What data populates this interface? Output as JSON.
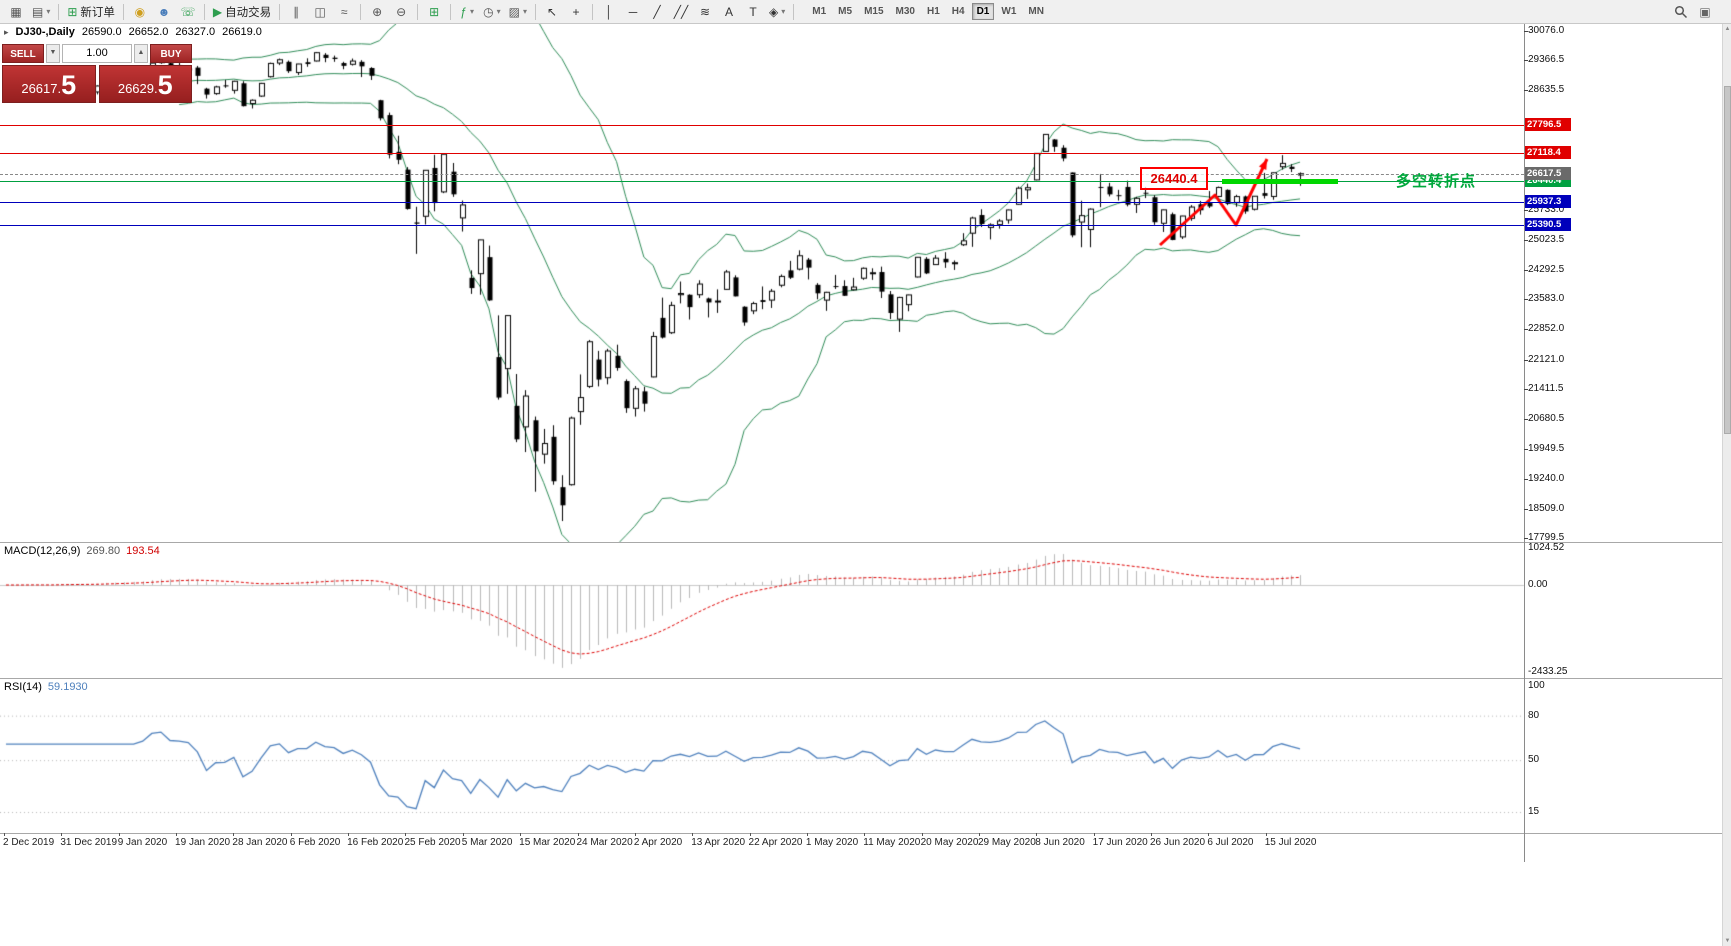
{
  "toolbar": {
    "groups": [
      {
        "items": [
          {
            "name": "new-chart",
            "glyph": "▦",
            "color": "#555"
          },
          {
            "name": "chart-profiles",
            "glyph": "▤",
            "color": "#555",
            "dropdown": true
          }
        ]
      },
      {
        "items": [
          {
            "name": "new-order",
            "glyph": "⊞",
            "color": "#2e9e4f",
            "label": "新订单"
          }
        ]
      },
      {
        "items": [
          {
            "name": "deposit",
            "glyph": "◉",
            "color": "#cf9f1f"
          },
          {
            "name": "accounts",
            "glyph": "☻",
            "color": "#4a7ebb"
          },
          {
            "name": "support",
            "glyph": "☏",
            "color": "#2e9e4f"
          }
        ]
      },
      {
        "items": [
          {
            "name": "auto-trading",
            "glyph": "▶",
            "color": "#2e9e4f",
            "label": "自动交易"
          }
        ]
      },
      {
        "items": [
          {
            "name": "bar-chart-mode",
            "glyph": "∥",
            "color": "#555"
          },
          {
            "name": "candlestick-mode",
            "glyph": "◫",
            "color": "#555"
          },
          {
            "name": "line-chart-mode",
            "glyph": "≈",
            "color": "#555"
          }
        ]
      },
      {
        "items": [
          {
            "name": "zoom-in",
            "glyph": "⊕",
            "color": "#555"
          },
          {
            "name": "zoom-out",
            "glyph": "⊖",
            "color": "#555"
          }
        ]
      },
      {
        "items": [
          {
            "name": "auto-arrange",
            "glyph": "⊞",
            "color": "#2e9e4f"
          }
        ]
      },
      {
        "items": [
          {
            "name": "indicators",
            "glyph": "ƒ",
            "color": "#2e9e4f",
            "dropdown": true
          },
          {
            "name": "periods",
            "glyph": "◷",
            "color": "#555",
            "dropdown": true
          },
          {
            "name": "templates",
            "glyph": "▨",
            "color": "#555",
            "dropdown": true
          }
        ]
      },
      {
        "items": [
          {
            "name": "cursor",
            "glyph": "↖",
            "color": "#333"
          },
          {
            "name": "crosshair",
            "glyph": "+",
            "color": "#333"
          }
        ]
      },
      {
        "items": [
          {
            "name": "vertical-line",
            "glyph": "│",
            "color": "#333"
          },
          {
            "name": "horizontal-line",
            "glyph": "─",
            "color": "#333"
          },
          {
            "name": "trendline",
            "glyph": "╱",
            "color": "#333"
          },
          {
            "name": "equidistant-channel",
            "glyph": "╱╱",
            "color": "#333"
          },
          {
            "name": "fibonacci",
            "glyph": "≋",
            "color": "#333"
          },
          {
            "name": "text",
            "glyph": "A",
            "color": "#333"
          },
          {
            "name": "text-label",
            "glyph": "T",
            "color": "#333"
          },
          {
            "name": "arrows",
            "glyph": "◈",
            "color": "#333",
            "dropdown": true
          }
        ]
      }
    ],
    "timeframes": [
      "M1",
      "M5",
      "M15",
      "M30",
      "H1",
      "H4",
      "D1",
      "W1",
      "MN"
    ],
    "active_timeframe": "D1"
  },
  "chart": {
    "symbol_line": {
      "symbol": "DJ30-,Daily",
      "open": "26590.0",
      "high": "26652.0",
      "low": "26327.0",
      "close": "26619.0"
    },
    "trade_panel": {
      "sell_label": "SELL",
      "buy_label": "BUY",
      "volume": "1.00",
      "bid_main": "26617.",
      "bid_big": "5",
      "ask_main": "26629.",
      "ask_big": "5"
    },
    "price_ticks": [
      {
        "v": 30076.0,
        "label": "30076.0"
      },
      {
        "v": 29366.5,
        "label": "29366.5"
      },
      {
        "v": 28635.5,
        "label": "28635.5"
      },
      {
        "v": 25733.0,
        "label": "25733.0"
      },
      {
        "v": 25023.5,
        "label": "25023.5"
      },
      {
        "v": 24292.5,
        "label": "24292.5"
      },
      {
        "v": 23583.0,
        "label": "23583.0"
      },
      {
        "v": 22852.0,
        "label": "22852.0"
      },
      {
        "v": 22121.0,
        "label": "22121.0"
      },
      {
        "v": 21411.5,
        "label": "21411.5"
      },
      {
        "v": 20680.5,
        "label": "20680.5"
      },
      {
        "v": 19949.5,
        "label": "19949.5"
      },
      {
        "v": 19240.0,
        "label": "19240.0"
      },
      {
        "v": 18509.0,
        "label": "18509.0"
      },
      {
        "v": 17799.5,
        "label": "17799.5"
      }
    ],
    "hlines": [
      {
        "v": 27796.5,
        "label": "27796.5",
        "color": "#e00000"
      },
      {
        "v": 27118.4,
        "label": "27118.4",
        "color": "#e00000"
      },
      {
        "v": 26440.4,
        "label": "26440.4",
        "color": "#00a040"
      },
      {
        "v": 25937.3,
        "label": "25937.3",
        "color": "#0000bb"
      },
      {
        "v": 25390.5,
        "label": "25390.5",
        "color": "#0000bb"
      }
    ],
    "bid_line": {
      "v": 26617.5,
      "label": "26617.5",
      "color": "#6a6a6a"
    },
    "dates": [
      "2 Dec 2019",
      "31 Dec 2019",
      "9 Jan 2020",
      "19 Jan 2020",
      "28 Jan 2020",
      "6 Feb 2020",
      "16 Feb 2020",
      "25 Feb 2020",
      "5 Mar 2020",
      "15 Mar 2020",
      "24 Mar 2020",
      "2 Apr 2020",
      "13 Apr 2020",
      "22 Apr 2020",
      "1 May 2020",
      "11 May 2020",
      "20 May 2020",
      "29 May 2020",
      "8 Jun 2020",
      "17 Jun 2020",
      "26 Jun 2020",
      "6 Jul 2020",
      "15 Jul 2020"
    ],
    "annotations": {
      "level_label": "26440.4",
      "pivot_label": "多空转折点",
      "zigzag": [
        [
          1160,
          221
        ],
        [
          1215,
          171
        ],
        [
          1236,
          201
        ],
        [
          1267,
          135
        ]
      ]
    }
  },
  "macd": {
    "name": "MACD(12,26,9)",
    "v1": "269.80",
    "v2": "193.54",
    "axis": [
      {
        "v": 1024.52,
        "label": "1024.52"
      },
      {
        "v": 0,
        "label": "0.00"
      },
      {
        "v": -2433.25,
        "label": "-2433.25"
      }
    ]
  },
  "rsi": {
    "name": "RSI(14)",
    "value": "59.1930",
    "axis": [
      {
        "v": 100,
        "label": "100"
      },
      {
        "v": 80,
        "label": "80"
      },
      {
        "v": 50,
        "label": "50"
      },
      {
        "v": 15,
        "label": "15"
      }
    ],
    "levels": [
      80,
      50,
      15
    ]
  },
  "colors": {
    "bull": "#ffffff",
    "bear": "#000000",
    "wick": "#000000",
    "bollinger": "#2e8b57",
    "macd_hist": "#b9b9b9",
    "macd_signal": "#dd0000",
    "macd_zero": "#c8c8c8",
    "rsi_line": "#4f81bd",
    "rsi_level": "#b6b6b6",
    "annotation_red": "#ff0000"
  },
  "chart_data": {
    "type": "candlestick",
    "symbol": "DJ30-",
    "timeframe": "Daily",
    "visible_range": [
      "22 Dec 2019",
      "17 Jul 2020"
    ],
    "y_range": [
      17799.5,
      30076.0
    ],
    "candles": [
      [
        28470,
        28560,
        28430,
        28551
      ],
      [
        28550,
        28580,
        28500,
        28515
      ],
      [
        28520,
        28625,
        28510,
        28621
      ],
      [
        28640,
        28700,
        28570,
        28645
      ],
      [
        28640,
        28660,
        28420,
        28462
      ],
      [
        28460,
        28550,
        28430,
        28538
      ],
      [
        28560,
        28880,
        28540,
        28869
      ],
      [
        28650,
        28720,
        28500,
        28635
      ],
      [
        28550,
        28710,
        28520,
        28703
      ],
      [
        28700,
        28730,
        28560,
        28583
      ],
      [
        28600,
        28760,
        28540,
        28745
      ],
      [
        28800,
        28960,
        28790,
        28957
      ],
      [
        28960,
        29010,
        28820,
        28824
      ],
      [
        28850,
        28910,
        28810,
        28907
      ],
      [
        28910,
        29010,
        28870,
        28939
      ],
      [
        28930,
        29060,
        28890,
        29030
      ],
      [
        29070,
        29300,
        29060,
        29297
      ],
      [
        29310,
        29375,
        29280,
        29348
      ],
      [
        29300,
        29340,
        29190,
        29196
      ],
      [
        29240,
        29320,
        29170,
        29186
      ],
      [
        29130,
        29230,
        28970,
        29160
      ],
      [
        29190,
        29230,
        28790,
        28990
      ],
      [
        28680,
        28700,
        28440,
        28536
      ],
      [
        28560,
        28750,
        28530,
        28723
      ],
      [
        28760,
        28890,
        28700,
        28734
      ],
      [
        28640,
        28870,
        28560,
        28859
      ],
      [
        28810,
        28860,
        28250,
        28256
      ],
      [
        28320,
        28420,
        28200,
        28400
      ],
      [
        28500,
        28820,
        28480,
        28808
      ],
      [
        28970,
        29310,
        28950,
        29291
      ],
      [
        29300,
        29409,
        29250,
        29380
      ],
      [
        29330,
        29360,
        29060,
        29103
      ],
      [
        29070,
        29280,
        29010,
        29277
      ],
      [
        29320,
        29415,
        29210,
        29276
      ],
      [
        29350,
        29568,
        29340,
        29551
      ],
      [
        29500,
        29540,
        29320,
        29423
      ],
      [
        29430,
        29480,
        29330,
        29398
      ],
      [
        29300,
        29330,
        29150,
        29232
      ],
      [
        29270,
        29409,
        29240,
        29348
      ],
      [
        29330,
        29370,
        28960,
        29220
      ],
      [
        29180,
        29200,
        28890,
        28992
      ],
      [
        28400,
        28410,
        27910,
        27961
      ],
      [
        28040,
        28100,
        26990,
        27081
      ],
      [
        27150,
        27540,
        26850,
        26958
      ],
      [
        26720,
        26780,
        25750,
        25766
      ],
      [
        25440,
        25820,
        24680,
        25409
      ],
      [
        25590,
        26710,
        25390,
        26703
      ],
      [
        26760,
        27080,
        25710,
        25917
      ],
      [
        26180,
        27100,
        26150,
        27090
      ],
      [
        26670,
        26880,
        26060,
        26121
      ],
      [
        25550,
        25970,
        25220,
        25864
      ],
      [
        24100,
        24280,
        23710,
        23851
      ],
      [
        24200,
        25020,
        23690,
        25018
      ],
      [
        24600,
        24880,
        23540,
        23553
      ],
      [
        22180,
        23190,
        21150,
        21200
      ],
      [
        21900,
        23190,
        21290,
        23185
      ],
      [
        21000,
        21770,
        20120,
        20188
      ],
      [
        20490,
        21380,
        19880,
        21237
      ],
      [
        20650,
        20740,
        18920,
        19898
      ],
      [
        19830,
        20440,
        19600,
        20087
      ],
      [
        20250,
        20530,
        19090,
        19173
      ],
      [
        19030,
        19320,
        18210,
        18591
      ],
      [
        19090,
        20740,
        19070,
        20704
      ],
      [
        20860,
        21760,
        20540,
        21200
      ],
      [
        21470,
        22595,
        21430,
        22552
      ],
      [
        22120,
        22330,
        21470,
        21636
      ],
      [
        21680,
        22380,
        21520,
        22327
      ],
      [
        22210,
        22480,
        21850,
        21917
      ],
      [
        21600,
        21640,
        20830,
        20943
      ],
      [
        20940,
        21480,
        20740,
        21413
      ],
      [
        21350,
        21460,
        20860,
        21052
      ],
      [
        21700,
        22790,
        21690,
        22679
      ],
      [
        23130,
        23620,
        22630,
        22653
      ],
      [
        22770,
        23520,
        22740,
        23433
      ],
      [
        23690,
        24010,
        23480,
        23719
      ],
      [
        23690,
        23700,
        23090,
        23390
      ],
      [
        23690,
        24040,
        23610,
        23949
      ],
      [
        23600,
        23620,
        23140,
        23504
      ],
      [
        23520,
        23820,
        23250,
        23537
      ],
      [
        23820,
        24290,
        23810,
        24242
      ],
      [
        24110,
        24160,
        23650,
        23650
      ],
      [
        23400,
        23410,
        22940,
        23018
      ],
      [
        23300,
        23520,
        23220,
        23476
      ],
      [
        23560,
        23890,
        23340,
        23515
      ],
      [
        23560,
        23830,
        23370,
        23775
      ],
      [
        23920,
        24180,
        23870,
        24134
      ],
      [
        24280,
        24510,
        24070,
        24102
      ],
      [
        24310,
        24765,
        24280,
        24634
      ],
      [
        24540,
        24580,
        24060,
        24346
      ],
      [
        23930,
        23970,
        23580,
        23724
      ],
      [
        23560,
        23760,
        23300,
        23749
      ],
      [
        23900,
        24170,
        23830,
        23883
      ],
      [
        23900,
        24040,
        23660,
        23665
      ],
      [
        23810,
        24100,
        23790,
        23876
      ],
      [
        24090,
        24350,
        24050,
        24331
      ],
      [
        24210,
        24330,
        24050,
        24222
      ],
      [
        24240,
        24370,
        23610,
        23765
      ],
      [
        23700,
        23780,
        23100,
        23248
      ],
      [
        23100,
        23640,
        22790,
        23625
      ],
      [
        23450,
        23690,
        23290,
        23685
      ],
      [
        24120,
        24600,
        24110,
        24597
      ],
      [
        24560,
        24600,
        24190,
        24207
      ],
      [
        24420,
        24650,
        24410,
        24576
      ],
      [
        24560,
        24720,
        24340,
        24474
      ],
      [
        24440,
        24520,
        24290,
        24465
      ],
      [
        24900,
        25180,
        24870,
        24995
      ],
      [
        25180,
        25580,
        24850,
        25548
      ],
      [
        25620,
        25760,
        25330,
        25401
      ],
      [
        25320,
        25420,
        25030,
        25383
      ],
      [
        25390,
        25520,
        25290,
        25475
      ],
      [
        25500,
        25750,
        25410,
        25743
      ],
      [
        25880,
        26310,
        25870,
        26270
      ],
      [
        26230,
        26380,
        26010,
        26282
      ],
      [
        26470,
        27110,
        26460,
        27111
      ],
      [
        27160,
        27580,
        27150,
        27572
      ],
      [
        27450,
        27460,
        27150,
        27272
      ],
      [
        27250,
        27310,
        26920,
        26990
      ],
      [
        26650,
        26650,
        25080,
        25128
      ],
      [
        25450,
        25965,
        24840,
        25605
      ],
      [
        25270,
        25780,
        24840,
        25763
      ],
      [
        26300,
        26610,
        25810,
        26290
      ],
      [
        26310,
        26400,
        26070,
        26120
      ],
      [
        26100,
        26230,
        25970,
        26080
      ],
      [
        26300,
        26450,
        25830,
        25871
      ],
      [
        25880,
        26060,
        25670,
        26025
      ],
      [
        26160,
        26300,
        26030,
        26156
      ],
      [
        26050,
        26100,
        25380,
        25445
      ],
      [
        25420,
        25750,
        25210,
        25745
      ],
      [
        25640,
        25680,
        25010,
        25016
      ],
      [
        25090,
        25600,
        25040,
        25596
      ],
      [
        25540,
        25860,
        25480,
        25813
      ],
      [
        25880,
        25960,
        25630,
        25735
      ],
      [
        25920,
        26200,
        25790,
        25827
      ],
      [
        26070,
        26310,
        26050,
        26287
      ],
      [
        26230,
        26240,
        25860,
        25890
      ],
      [
        25920,
        26110,
        25820,
        26067
      ],
      [
        26070,
        26090,
        25650,
        25706
      ],
      [
        25760,
        26080,
        25730,
        26075
      ],
      [
        26150,
        26640,
        26020,
        26085
      ],
      [
        26070,
        26650,
        25990,
        26643
      ],
      [
        26790,
        27070,
        26720,
        26870
      ],
      [
        26790,
        26850,
        26660,
        26735
      ],
      [
        26590,
        26652,
        26327,
        26619
      ]
    ],
    "indicators": {
      "bollinger": {
        "period": 20,
        "deviation": 2
      },
      "macd": {
        "fast": 12,
        "slow": 26,
        "signal": 9,
        "current_main": 269.8,
        "current_signal": 193.54
      },
      "rsi": {
        "period": 14,
        "current": 59.193
      }
    }
  }
}
